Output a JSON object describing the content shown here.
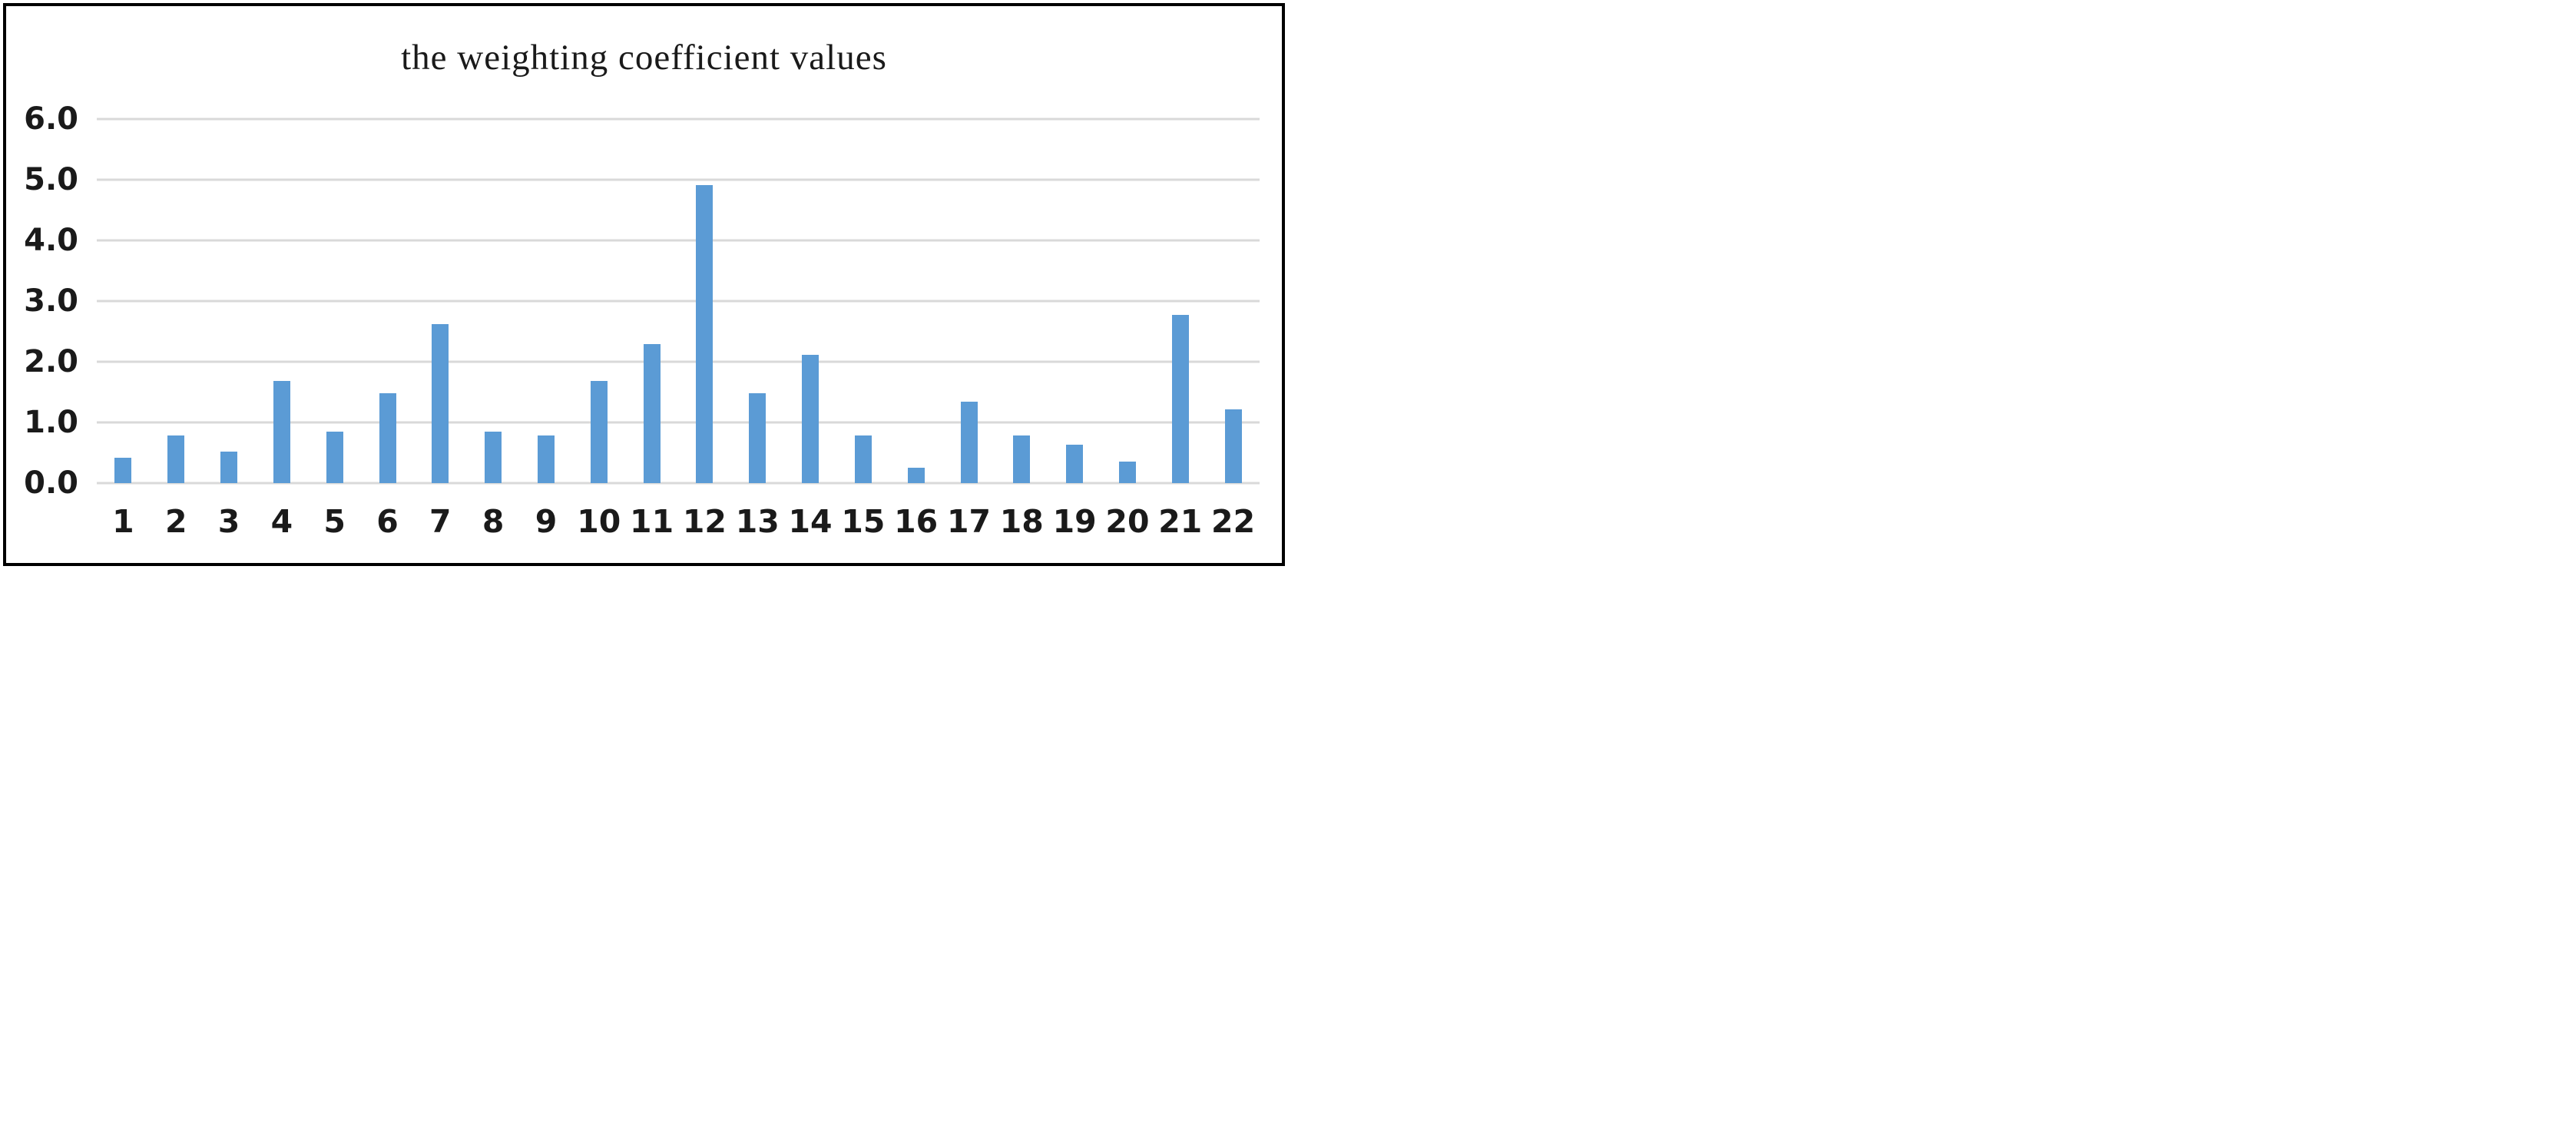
{
  "chart_data": {
    "type": "bar",
    "title": "the weighting coefficient values",
    "categories": [
      "1",
      "2",
      "3",
      "4",
      "5",
      "6",
      "7",
      "8",
      "9",
      "10",
      "11",
      "12",
      "13",
      "14",
      "15",
      "16",
      "17",
      "18",
      "19",
      "20",
      "21",
      "22"
    ],
    "values": [
      0.42,
      0.78,
      0.52,
      1.68,
      0.85,
      1.48,
      2.62,
      0.85,
      0.78,
      1.68,
      2.29,
      4.91,
      1.48,
      2.11,
      0.78,
      0.25,
      1.34,
      0.78,
      0.63,
      0.35,
      2.77,
      1.22
    ],
    "xlabel": "",
    "ylabel": "",
    "ylim": [
      0,
      6
    ],
    "ytick_step": 1.0,
    "ytick_labels": [
      "0.0",
      "1.0",
      "2.0",
      "3.0",
      "4.0",
      "5.0",
      "6.0"
    ],
    "grid": true,
    "legend": false,
    "bar_color": "#5B9BD5",
    "gridline_color": "#D9D9D9",
    "frame_color": "#000000",
    "text_color": "#1A1A1A",
    "background_color": "#FFFFFF"
  }
}
